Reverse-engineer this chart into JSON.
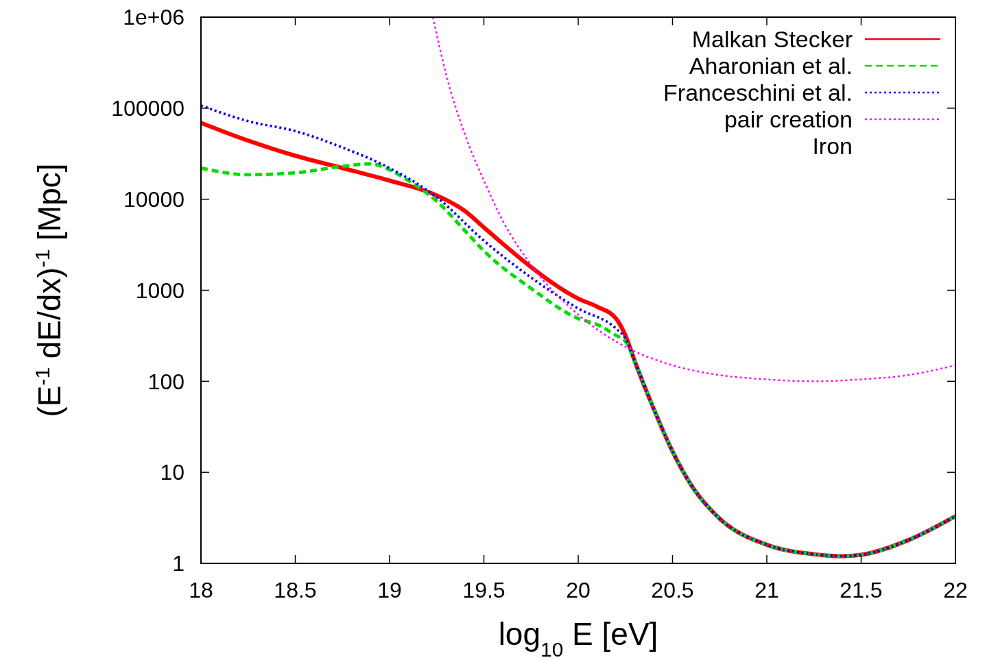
{
  "chart_data": {
    "type": "line",
    "xlabel": "log$_{10}$ E [eV]",
    "ylabel": "(E$^{-1}$ dE/dx)$^{-1}$ [Mpc]",
    "log": "y",
    "grid": false,
    "legend": "top right",
    "annotations": [
      "Iron"
    ],
    "xlim": [
      18,
      22
    ],
    "xticks": [
      18,
      18.5,
      19,
      19.5,
      20,
      20.5,
      21,
      21.5,
      22
    ],
    "ylim": [
      1,
      1000000
    ],
    "yticks": [
      1,
      10,
      100,
      1000,
      10000,
      100000,
      {
        "value": 1000000,
        "label": "1e+06"
      }
    ],
    "series": [
      {
        "name": "Malkan Stecker",
        "color": "#ff0000",
        "line_style": "solid",
        "x": [
          18,
          18.25,
          18.5,
          18.75,
          19,
          19.25,
          19.4,
          19.5,
          19.75,
          19.85,
          20,
          20.1,
          20.2,
          20.25,
          20.3,
          20.4,
          20.5,
          20.6,
          20.75,
          21,
          21.25,
          21.4,
          21.5,
          21.75,
          22
        ],
        "values": [
          69000,
          44000,
          30000,
          22000,
          16000,
          11000,
          7400,
          4900,
          1800,
          1260,
          810,
          660,
          490,
          320,
          166,
          50,
          17,
          7.2,
          3.1,
          1.6,
          1.26,
          1.2,
          1.24,
          1.8,
          3.3
        ]
      },
      {
        "name": "Aharonian et al.",
        "color": "#00dd00",
        "line_style": "dashed",
        "x": [
          18,
          18.25,
          18.5,
          18.75,
          18.9,
          19,
          19.1,
          19.25,
          19.4,
          19.5,
          19.75,
          20,
          20.1,
          20.2,
          20.25,
          20.3,
          20.4,
          20.5,
          20.6,
          20.75,
          21,
          21.25,
          21.4,
          21.5,
          21.75,
          22
        ],
        "values": [
          22000,
          18600,
          19500,
          23000,
          24500,
          21000,
          16000,
          9500,
          4500,
          2700,
          1050,
          490,
          420,
          320,
          275,
          166,
          50,
          17,
          7.2,
          3.1,
          1.6,
          1.26,
          1.2,
          1.24,
          1.8,
          3.3
        ]
      },
      {
        "name": "Franceschini et al.",
        "color": "#0000ff",
        "line_style": "dotted",
        "x": [
          18,
          18.25,
          18.5,
          18.75,
          19,
          19.25,
          19.5,
          19.75,
          20,
          20.2,
          20.25,
          20.3,
          20.4,
          20.5,
          20.6,
          20.75,
          21,
          21.25,
          21.4,
          21.5,
          21.75,
          22
        ],
        "values": [
          107000,
          72000,
          56000,
          37000,
          22000,
          10500,
          3500,
          1380,
          630,
          380,
          295,
          166,
          50,
          17,
          7.2,
          3.1,
          1.6,
          1.26,
          1.2,
          1.24,
          1.8,
          3.3
        ]
      },
      {
        "name": "pair creation",
        "color": "#ff00ff",
        "line_style": "dotted",
        "x": [
          19.23,
          19.3,
          19.4,
          19.5,
          19.6,
          19.75,
          20,
          20.25,
          20.5,
          20.75,
          21,
          21.25,
          21.5,
          21.75,
          22
        ],
        "values": [
          1000000,
          234000,
          51000,
          16000,
          5800,
          1900,
          540,
          240,
          150,
          117,
          105,
          100,
          105,
          117,
          150
        ]
      }
    ]
  }
}
